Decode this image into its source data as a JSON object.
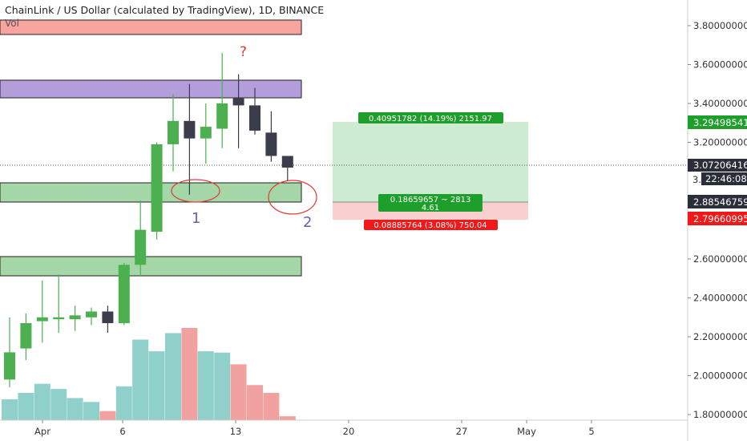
{
  "header": {
    "title": "ChainLink / US Dollar (calculated by TradingView), 1D, BINANCE",
    "vol_label": "Vol"
  },
  "annotations": {
    "question_mark": "?",
    "label_1": "1",
    "label_2": "2"
  },
  "position_tool": {
    "target_label": "0.40951782 (14.19%) 2151.97",
    "stop_label": "0.08885764 (3.08%) 750.04",
    "center_line1": "0.18659657 ~ 2813",
    "center_line2": "4.61",
    "target_price": 3.29498541,
    "entry_price": 2.88546759,
    "stop_price": 2.79660995
  },
  "price_axis": {
    "ticks": [
      "3.80000000",
      "3.60000000",
      "3.40000000",
      "3.20000000",
      "2.60000000",
      "2.40000000",
      "2.20000000",
      "2.00000000",
      "1.80000000"
    ],
    "tick_values": [
      3.8,
      3.6,
      3.4,
      3.2,
      2.6,
      2.4,
      2.2,
      2.0,
      1.8
    ],
    "partial_label": "3.",
    "current_price": "3.07206416",
    "countdown": "22:46:08",
    "target_tag": "3.29498541",
    "entry_tag": "2.88546759",
    "stop_tag": "2.79660995"
  },
  "time_axis": {
    "labels": [
      "Apr",
      "6",
      "13",
      "20",
      "27",
      "May",
      "5"
    ]
  },
  "colors": {
    "up": "#4caf50",
    "down": "#3c3d4a",
    "vol_up": "#8fd0ca",
    "vol_down": "#f2a1a1",
    "zone_purple": "#b39ddb",
    "zone_green": "#a5d6a7",
    "zone_red": "#f8a5a0",
    "target_area": "#cdebd0",
    "stop_area": "#f9cfcf",
    "label_green": "#1e9e2a",
    "label_red": "#f01818",
    "annot_red": "#e53935",
    "annot_purple": "#6b5fa8"
  },
  "chart_data": {
    "type": "candlestick",
    "symbol": "ChainLink / US Dollar",
    "interval": "1D",
    "exchange": "BINANCE",
    "ylim": [
      1.78,
      3.9
    ],
    "candles": [
      {
        "date": "Mar 30",
        "open": 1.98,
        "high": 2.3,
        "low": 1.94,
        "close": 2.12
      },
      {
        "date": "Mar 31",
        "open": 2.14,
        "high": 2.32,
        "low": 2.08,
        "close": 2.27
      },
      {
        "date": "Apr 1",
        "open": 2.28,
        "high": 2.49,
        "low": 2.17,
        "close": 2.3
      },
      {
        "date": "Apr 2",
        "open": 2.29,
        "high": 2.52,
        "low": 2.22,
        "close": 2.3
      },
      {
        "date": "Apr 3",
        "open": 2.29,
        "high": 2.36,
        "low": 2.23,
        "close": 2.31
      },
      {
        "date": "Apr 4",
        "open": 2.3,
        "high": 2.35,
        "low": 2.26,
        "close": 2.33
      },
      {
        "date": "Apr 5",
        "open": 2.33,
        "high": 2.36,
        "low": 2.22,
        "close": 2.27
      },
      {
        "date": "Apr 6",
        "open": 2.27,
        "high": 2.58,
        "low": 2.26,
        "close": 2.57
      },
      {
        "date": "Apr 7",
        "open": 2.57,
        "high": 2.9,
        "low": 2.51,
        "close": 2.75
      },
      {
        "date": "Apr 8",
        "open": 2.74,
        "high": 3.2,
        "low": 2.7,
        "close": 3.19
      },
      {
        "date": "Apr 9",
        "open": 3.19,
        "high": 3.45,
        "low": 3.05,
        "close": 3.31
      },
      {
        "date": "Apr 10",
        "open": 3.31,
        "high": 3.5,
        "low": 2.93,
        "close": 3.22
      },
      {
        "date": "Apr 11",
        "open": 3.22,
        "high": 3.4,
        "low": 3.09,
        "close": 3.28
      },
      {
        "date": "Apr 12",
        "open": 3.27,
        "high": 3.66,
        "low": 3.17,
        "close": 3.4
      },
      {
        "date": "Apr 13",
        "open": 3.43,
        "high": 3.55,
        "low": 3.17,
        "close": 3.39
      },
      {
        "date": "Apr 14",
        "open": 3.39,
        "high": 3.48,
        "low": 3.24,
        "close": 3.26
      },
      {
        "date": "Apr 15",
        "open": 3.25,
        "high": 3.36,
        "low": 3.1,
        "close": 3.13
      },
      {
        "date": "Apr 16",
        "open": 3.13,
        "high": 3.13,
        "low": 3.0,
        "close": 3.07
      }
    ],
    "volume": [
      {
        "value": 1.6,
        "dir": "up"
      },
      {
        "value": 2.1,
        "dir": "up"
      },
      {
        "value": 2.8,
        "dir": "up"
      },
      {
        "value": 2.4,
        "dir": "up"
      },
      {
        "value": 1.7,
        "dir": "up"
      },
      {
        "value": 1.4,
        "dir": "up"
      },
      {
        "value": 0.7,
        "dir": "down"
      },
      {
        "value": 2.6,
        "dir": "up"
      },
      {
        "value": 6.2,
        "dir": "up"
      },
      {
        "value": 5.3,
        "dir": "up"
      },
      {
        "value": 6.7,
        "dir": "up"
      },
      {
        "value": 7.1,
        "dir": "down"
      },
      {
        "value": 5.3,
        "dir": "up"
      },
      {
        "value": 5.2,
        "dir": "up"
      },
      {
        "value": 4.3,
        "dir": "down"
      },
      {
        "value": 2.7,
        "dir": "down"
      },
      {
        "value": 2.1,
        "dir": "down"
      },
      {
        "value": 0.3,
        "dir": "down"
      }
    ],
    "zones": [
      {
        "name": "resistance",
        "from": 3.42,
        "to": 3.52,
        "color": "purple"
      },
      {
        "name": "support",
        "from": 2.88,
        "to": 2.98,
        "color": "green"
      },
      {
        "name": "lower-support",
        "from": 2.5,
        "to": 2.6,
        "color": "green"
      }
    ]
  }
}
